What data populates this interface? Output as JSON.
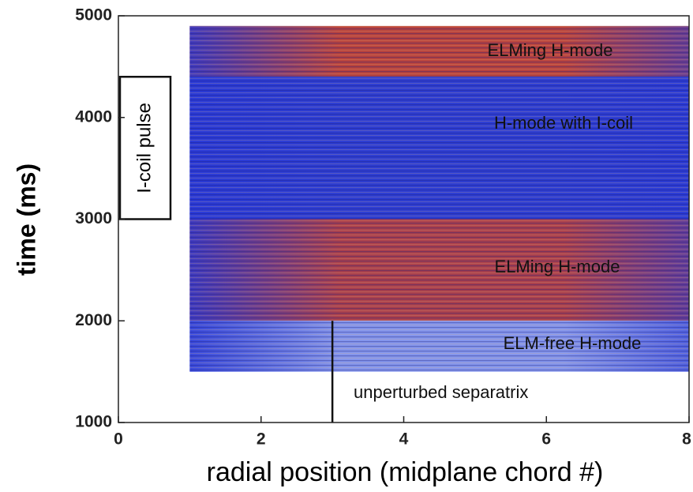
{
  "chart_data": {
    "type": "heatmap",
    "xlabel": "radial position (midplane chord #)",
    "ylabel": "time (ms)",
    "xlim": [
      0,
      8
    ],
    "xticks": [
      0,
      2,
      4,
      6,
      8
    ],
    "ylim": [
      1000,
      5000
    ],
    "yticks": [
      1000,
      2000,
      3000,
      4000,
      5000
    ],
    "regions": [
      {
        "label": "ELMing H-mode",
        "x": [
          1,
          8
        ],
        "y": [
          4400,
          4900
        ],
        "color": "#c8452e"
      },
      {
        "label": "H-mode with I-coil",
        "x": [
          1,
          8
        ],
        "y": [
          3000,
          4400
        ],
        "color": "#2f3fd2"
      },
      {
        "label": "ELMing H-mode",
        "x": [
          1,
          8
        ],
        "y": [
          2000,
          3000
        ],
        "color": "#b8423e"
      },
      {
        "label": "ELM-free H-mode",
        "x": [
          1,
          8
        ],
        "y": [
          1500,
          2000
        ],
        "color": "#8fa0ee"
      }
    ],
    "separatrix": {
      "label": "unperturbed separatrix",
      "x": 3,
      "y": [
        1000,
        2000
      ]
    },
    "pulse": {
      "label": "I-coil pulse",
      "y": [
        3000,
        4400
      ]
    }
  }
}
